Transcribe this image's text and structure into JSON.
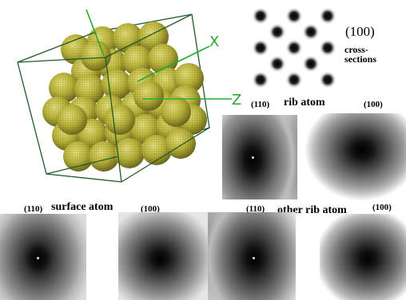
{
  "crystal": {
    "axis_labels": {
      "x": "X",
      "z": "Z"
    }
  },
  "cross_section_caption": {
    "index": "(100)",
    "word1": "cross-",
    "word2": "sections"
  },
  "rib_atom": {
    "title": "rib atom",
    "left_index": "(110)",
    "right_index": "(100)"
  },
  "surface_atom": {
    "title": "surface atom",
    "left_index": "(110)",
    "right_index": "(100)"
  },
  "other_rib_atom": {
    "title": "other rib atom",
    "left_index": "(110)",
    "right_index": "(100)"
  },
  "colors": {
    "sphere_fill": "#c8c34a",
    "cube_edges": "#1f5a2a",
    "axis_lines": "#22aa33"
  }
}
